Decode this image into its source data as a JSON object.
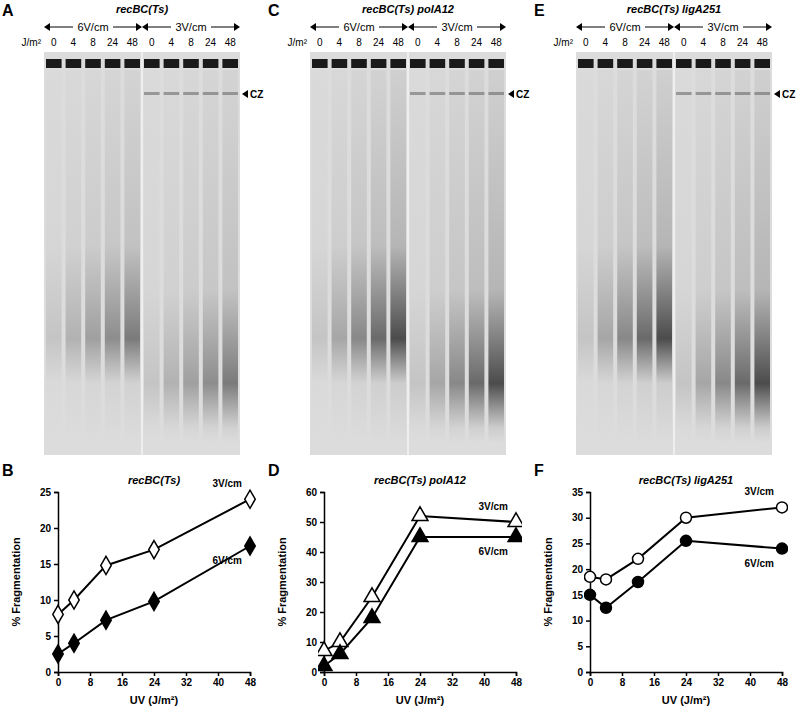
{
  "chart_data": [
    {
      "type": "line",
      "title": "recBC(Ts)",
      "annotations": [
        "B"
      ],
      "x_label": "UV (J/m²)",
      "y_label": "% Fragmentation",
      "x": [
        0,
        4,
        12,
        24,
        48
      ],
      "xlim": [
        0,
        48
      ],
      "xticks": [
        0,
        8,
        16,
        24,
        32,
        40,
        48
      ],
      "ylim": [
        0,
        25
      ],
      "yticks": [
        0,
        5,
        10,
        15,
        20,
        25
      ],
      "series": [
        {
          "name": "3V/cm",
          "color": "#000000",
          "marker": "diamond-open",
          "values": [
            8,
            10,
            14.8,
            17,
            24
          ]
        },
        {
          "name": "6V/cm",
          "color": "#000000",
          "marker": "diamond",
          "values": [
            2.5,
            4,
            7.2,
            9.8,
            17.5
          ]
        }
      ]
    },
    {
      "type": "line",
      "title": "recBC(Ts) polA12",
      "annotations": [
        "D"
      ],
      "x_label": "UV (J/m²)",
      "y_label": "% Fragmentation",
      "x": [
        0,
        4,
        12,
        24,
        48
      ],
      "xlim": [
        0,
        48
      ],
      "xticks": [
        0,
        8,
        16,
        24,
        32,
        40,
        48
      ],
      "ylim": [
        0,
        60
      ],
      "yticks": [
        0,
        10,
        20,
        30,
        40,
        50,
        60
      ],
      "series": [
        {
          "name": "3V/cm",
          "color": "#000000",
          "marker": "triangle-open",
          "values": [
            7,
            10,
            25,
            52,
            50
          ]
        },
        {
          "name": "6V/cm",
          "color": "#000000",
          "marker": "triangle",
          "values": [
            2,
            6,
            18,
            45,
            45
          ]
        }
      ]
    },
    {
      "type": "line",
      "title": "recBC(Ts) ligA251",
      "annotations": [
        "F"
      ],
      "x_label": "UV (J/m²)",
      "y_label": "% Fragmentation",
      "x": [
        0,
        4,
        12,
        24,
        48
      ],
      "xlim": [
        0,
        48
      ],
      "xticks": [
        0,
        8,
        16,
        24,
        32,
        40,
        48
      ],
      "ylim": [
        0,
        35
      ],
      "yticks": [
        0,
        5,
        10,
        15,
        20,
        25,
        30,
        35
      ],
      "series": [
        {
          "name": "3V/cm",
          "color": "#000000",
          "marker": "circle-open",
          "values": [
            18.5,
            18,
            22,
            30,
            32
          ]
        },
        {
          "name": "6V/cm",
          "color": "#000000",
          "marker": "circle",
          "values": [
            15,
            12.5,
            17.5,
            25.5,
            24
          ]
        }
      ]
    }
  ],
  "gels": [
    {
      "panel": "A",
      "title": "recBC(Ts)",
      "unit": "J/m²",
      "groups": [
        "6V/cm",
        "3V/cm"
      ],
      "doses": [
        0,
        4,
        8,
        24,
        48
      ],
      "band_label": "CZ"
    },
    {
      "panel": "C",
      "title": "recBC(Ts) polA12",
      "unit": "J/m²",
      "groups": [
        "6V/cm",
        "3V/cm"
      ],
      "doses": [
        0,
        4,
        8,
        24,
        48
      ],
      "band_label": "CZ"
    },
    {
      "panel": "E",
      "title": "recBC(Ts) ligA251",
      "unit": "J/m²",
      "groups": [
        "6V/cm",
        "3V/cm"
      ],
      "doses": [
        0,
        4,
        8,
        24,
        48
      ],
      "band_label": "CZ"
    }
  ]
}
